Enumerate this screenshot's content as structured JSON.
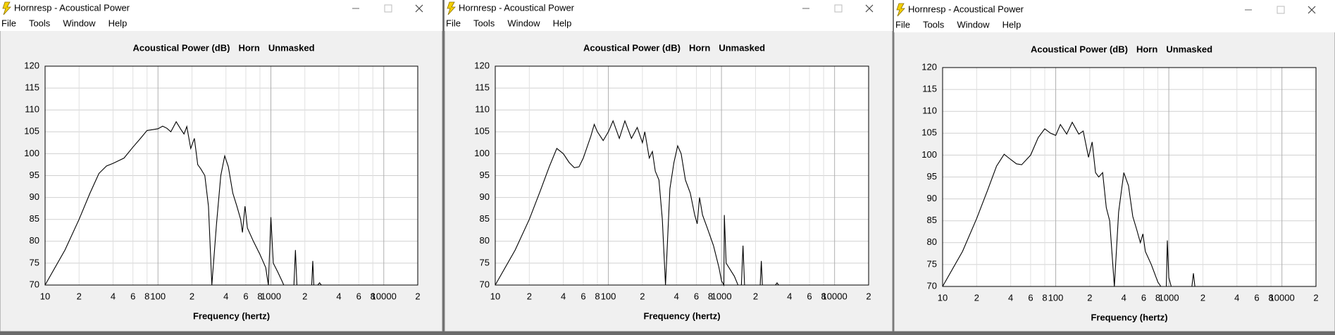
{
  "windows": [
    {
      "title": "Hornresp - Acoustical Power",
      "menu": [
        "File",
        "Tools",
        "Window",
        "Help"
      ]
    },
    {
      "title": "Hornresp - Acoustical Power",
      "menu": [
        "File",
        "Tools",
        "Window",
        "Help"
      ]
    },
    {
      "title": "Hornresp - Acoustical Power",
      "menu": [
        "File",
        "Tools",
        "Window",
        "Help"
      ]
    }
  ],
  "chart_data": [
    {
      "type": "line",
      "title": "Acoustical Power (dB)",
      "mode": "Horn",
      "mask": "Unmasked",
      "x_label": "Frequency (hertz)",
      "log_x": true,
      "grid": true,
      "xlim": [
        10,
        20000
      ],
      "ylim": [
        70,
        120
      ],
      "yticks": [
        70,
        75,
        80,
        85,
        90,
        95,
        100,
        105,
        110,
        115,
        120
      ],
      "xticks": [
        {
          "value": 10,
          "label": "10"
        },
        {
          "value": 20,
          "label": "2"
        },
        {
          "value": 40,
          "label": "4"
        },
        {
          "value": 60,
          "label": "6"
        },
        {
          "value": 80,
          "label": "8"
        },
        {
          "value": 100,
          "label": "100"
        },
        {
          "value": 200,
          "label": "2"
        },
        {
          "value": 400,
          "label": "4"
        },
        {
          "value": 600,
          "label": "6"
        },
        {
          "value": 800,
          "label": "8"
        },
        {
          "value": 1000,
          "label": "1000"
        },
        {
          "value": 2000,
          "label": "2"
        },
        {
          "value": 4000,
          "label": "4"
        },
        {
          "value": 6000,
          "label": "6"
        },
        {
          "value": 8000,
          "label": "8"
        },
        {
          "value": 10000,
          "label": "10000"
        },
        {
          "value": 20000,
          "label": "2"
        }
      ],
      "x": [
        10,
        15,
        20,
        25,
        30,
        35,
        40,
        50,
        60,
        70,
        80,
        90,
        100,
        110,
        120,
        130,
        145,
        160,
        170,
        180,
        195,
        210,
        225,
        240,
        260,
        280,
        300,
        330,
        360,
        390,
        420,
        460,
        500,
        540,
        560,
        590,
        620,
        700,
        800,
        900,
        950,
        1000,
        1050,
        1150,
        1250,
        1300,
        1600,
        1650,
        1700,
        2300,
        2350,
        2400,
        2600,
        2700,
        2800
      ],
      "series": [
        {
          "color": "#000000",
          "values": [
            70,
            78,
            85,
            91,
            95.5,
            97.2,
            97.8,
            99,
            101.5,
            103.5,
            105.3,
            105.5,
            105.7,
            106.3,
            105.8,
            105,
            107.3,
            105.5,
            104.5,
            106.2,
            101.2,
            103.5,
            97.5,
            96.5,
            95,
            88,
            70,
            84,
            95,
            99.5,
            97,
            91,
            88,
            85,
            82,
            88,
            83,
            80,
            77,
            74,
            70,
            85.5,
            75,
            73,
            71,
            70,
            70,
            78,
            70,
            70,
            75.5,
            70,
            70,
            70.5,
            70
          ]
        }
      ]
    },
    {
      "type": "line",
      "title": "Acoustical Power (dB)",
      "mode": "Horn",
      "mask": "Unmasked",
      "x_label": "Frequency (hertz)",
      "log_x": true,
      "grid": true,
      "xlim": [
        10,
        20000
      ],
      "ylim": [
        70,
        120
      ],
      "yticks": [
        70,
        75,
        80,
        85,
        90,
        95,
        100,
        105,
        110,
        115,
        120
      ],
      "xticks": [
        {
          "value": 10,
          "label": "10"
        },
        {
          "value": 20,
          "label": "2"
        },
        {
          "value": 40,
          "label": "4"
        },
        {
          "value": 60,
          "label": "6"
        },
        {
          "value": 80,
          "label": "8"
        },
        {
          "value": 100,
          "label": "100"
        },
        {
          "value": 200,
          "label": "2"
        },
        {
          "value": 400,
          "label": "4"
        },
        {
          "value": 600,
          "label": "6"
        },
        {
          "value": 800,
          "label": "8"
        },
        {
          "value": 1000,
          "label": "1000"
        },
        {
          "value": 2000,
          "label": "2"
        },
        {
          "value": 4000,
          "label": "4"
        },
        {
          "value": 6000,
          "label": "6"
        },
        {
          "value": 8000,
          "label": "8"
        },
        {
          "value": 10000,
          "label": "10000"
        },
        {
          "value": 20000,
          "label": "2"
        }
      ],
      "x": [
        10,
        15,
        20,
        25,
        30,
        35,
        40,
        45,
        50,
        55,
        60,
        70,
        75,
        80,
        90,
        100,
        110,
        125,
        140,
        160,
        180,
        200,
        210,
        230,
        245,
        260,
        280,
        300,
        320,
        350,
        380,
        410,
        440,
        480,
        530,
        580,
        610,
        640,
        680,
        750,
        850,
        950,
        1000,
        1050,
        1060,
        1100,
        1300,
        1400,
        1500,
        1550,
        1600,
        2200,
        2250,
        2300,
        3000,
        3100,
        3200
      ],
      "series": [
        {
          "color": "#000000",
          "values": [
            70,
            78,
            85,
            91.5,
            97,
            101.2,
            100,
            98,
            96.8,
            97,
            99,
            104,
            106.7,
            105,
            103,
            105,
            107.5,
            103.5,
            107.5,
            103.5,
            106,
            102.5,
            105,
            99,
            100.5,
            96,
            94,
            85,
            70,
            92,
            98,
            101.8,
            100,
            94,
            91,
            86,
            84,
            90,
            86,
            83,
            79,
            74,
            71,
            70,
            86,
            75,
            72,
            70,
            70,
            79,
            70,
            70,
            75.5,
            70,
            70,
            70.5,
            70
          ]
        }
      ]
    },
    {
      "type": "line",
      "title": "Acoustical Power (dB)",
      "mode": "Horn",
      "mask": "Unmasked",
      "x_label": "Frequency (hertz)",
      "log_x": true,
      "grid": true,
      "xlim": [
        10,
        20000
      ],
      "ylim": [
        70,
        120
      ],
      "yticks": [
        70,
        75,
        80,
        85,
        90,
        95,
        100,
        105,
        110,
        115,
        120
      ],
      "xticks": [
        {
          "value": 10,
          "label": "10"
        },
        {
          "value": 20,
          "label": "2"
        },
        {
          "value": 40,
          "label": "4"
        },
        {
          "value": 60,
          "label": "6"
        },
        {
          "value": 80,
          "label": "8"
        },
        {
          "value": 100,
          "label": "100"
        },
        {
          "value": 200,
          "label": "2"
        },
        {
          "value": 400,
          "label": "4"
        },
        {
          "value": 600,
          "label": "6"
        },
        {
          "value": 800,
          "label": "8"
        },
        {
          "value": 1000,
          "label": "1000"
        },
        {
          "value": 2000,
          "label": "2"
        },
        {
          "value": 4000,
          "label": "4"
        },
        {
          "value": 6000,
          "label": "6"
        },
        {
          "value": 8000,
          "label": "8"
        },
        {
          "value": 10000,
          "label": "10000"
        },
        {
          "value": 20000,
          "label": "2"
        }
      ],
      "x": [
        10,
        15,
        20,
        25,
        30,
        35,
        40,
        45,
        50,
        60,
        70,
        80,
        90,
        100,
        110,
        125,
        140,
        160,
        175,
        195,
        210,
        225,
        240,
        260,
        280,
        300,
        330,
        360,
        400,
        440,
        480,
        520,
        560,
        590,
        620,
        700,
        800,
        850,
        950,
        970,
        1000,
        1050,
        1600,
        1650,
        1700
      ],
      "series": [
        {
          "color": "#000000",
          "values": [
            70,
            78,
            85.5,
            92,
            97.5,
            100.2,
            99,
            98,
            97.8,
            100,
            104,
            106,
            105,
            104.5,
            107,
            104.8,
            107.5,
            104.8,
            105.5,
            99.5,
            103,
            96,
            95,
            96,
            88,
            85,
            70,
            87,
            96,
            93,
            86,
            83,
            80,
            82,
            78,
            75,
            71,
            70,
            70,
            80.5,
            72,
            70,
            70,
            73,
            70
          ]
        }
      ]
    }
  ]
}
